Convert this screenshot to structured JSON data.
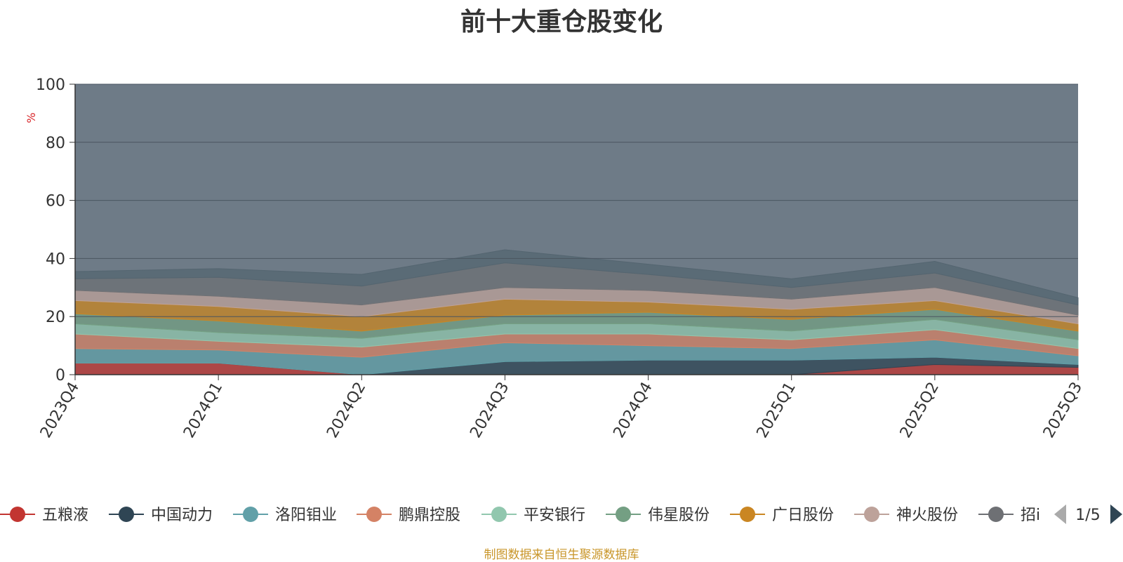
{
  "chart_data": {
    "type": "area",
    "title": "前十大重仓股变化",
    "ylabel": "%",
    "xlabel": "",
    "ylim": [
      0,
      100
    ],
    "yticks": [
      0,
      20,
      40,
      60,
      80,
      100
    ],
    "grid": true,
    "categories": [
      "2023Q4",
      "2024Q1",
      "2024Q2",
      "2024Q3",
      "2024Q4",
      "2025Q1",
      "2025Q2",
      "2025Q3"
    ],
    "series": [
      {
        "name": "五粮液",
        "color": "#c23531",
        "values": [
          4.0,
          4.0,
          0.0,
          0.0,
          0.0,
          0.0,
          3.5,
          2.5
        ]
      },
      {
        "name": "中国动力",
        "color": "#2f4554",
        "values": [
          0.0,
          0.0,
          0.0,
          4.5,
          5.0,
          5.0,
          2.5,
          1.0
        ]
      },
      {
        "name": "洛阳钼业",
        "color": "#61a0a8",
        "values": [
          5.0,
          4.5,
          6.0,
          6.5,
          5.0,
          4.0,
          6.0,
          3.0
        ]
      },
      {
        "name": "鹏鼎控股",
        "color": "#d48265",
        "values": [
          5.0,
          3.0,
          3.5,
          3.0,
          4.0,
          3.0,
          3.5,
          2.5
        ]
      },
      {
        "name": "平安银行",
        "color": "#91c7ae",
        "values": [
          3.5,
          3.0,
          3.0,
          3.5,
          3.5,
          3.0,
          3.5,
          3.0
        ]
      },
      {
        "name": "伟星股份",
        "color": "#749f83",
        "values": [
          3.5,
          4.0,
          2.5,
          3.0,
          4.0,
          4.0,
          3.5,
          3.0
        ]
      },
      {
        "name": "广日股份",
        "color": "#ca8622",
        "values": [
          4.5,
          5.0,
          5.0,
          5.5,
          3.5,
          3.5,
          3.0,
          2.5
        ]
      },
      {
        "name": "神火股份",
        "color": "#bda29a",
        "values": [
          3.5,
          3.5,
          4.0,
          4.0,
          4.0,
          3.5,
          4.5,
          3.0
        ]
      },
      {
        "name": "招商银行",
        "color": "#6e7074",
        "values": [
          4.0,
          6.5,
          6.5,
          8.5,
          5.5,
          4.0,
          5.0,
          3.5
        ]
      },
      {
        "name": "",
        "color": "#546570",
        "values": [
          2.5,
          3.0,
          4.0,
          4.5,
          3.5,
          3.0,
          4.0,
          2.5
        ]
      }
    ]
  },
  "legend": {
    "items": [
      "五粮液",
      "中国动力",
      "洛阳钼业",
      "鹏鼎控股",
      "平安银行",
      "伟星股份",
      "广日股份",
      "神火股份",
      "招i"
    ],
    "page_label": "1/5"
  },
  "footer": "制图数据来自恒生聚源数据库"
}
